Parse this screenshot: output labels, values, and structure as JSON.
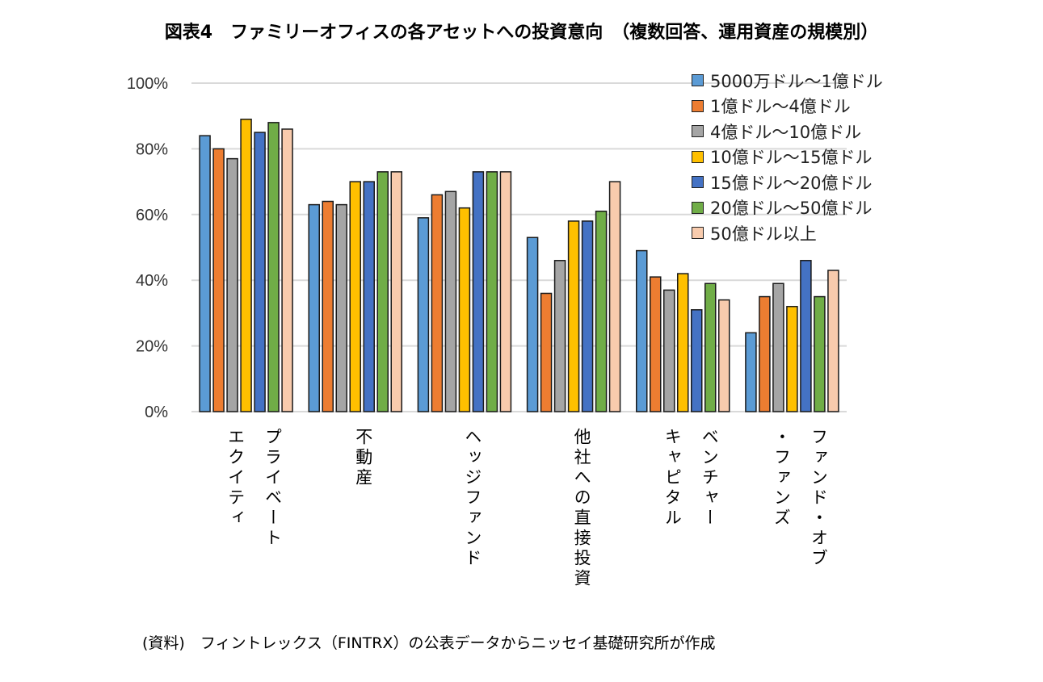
{
  "title": "図表4　ファミリーオフィスの各アセットへの投資意向　（複数回答、運用資産の規模別）",
  "source": "(資料)　フィントレックス（FINTRX）の公表データからニッセイ基礎研究所が作成",
  "chart_data": {
    "type": "bar",
    "title": "図表4　ファミリーオフィスの各アセットへの投資意向　（複数回答、運用資産の規模別）",
    "categories": [
      "プライベート\nエクイティ",
      "不動産",
      "ヘッジファンド",
      "他社への直接投資",
      "ベンチャー\nキャピタル",
      "ファンド・オブ\n・ファンズ"
    ],
    "ylim": [
      0,
      100
    ],
    "yticks": [
      "0%",
      "20%",
      "40%",
      "60%",
      "80%",
      "100%"
    ],
    "grid": true,
    "legend": "top-right",
    "series": [
      {
        "name": "5000万ドル～1億ドル",
        "color": "#5B9BD5",
        "values": [
          84,
          63,
          59,
          53,
          49,
          24
        ]
      },
      {
        "name": "1億ドル～4億ドル",
        "color": "#ED7D31",
        "values": [
          80,
          64,
          66,
          36,
          41,
          35
        ]
      },
      {
        "name": "4億ドル～10億ドル",
        "color": "#A5A5A5",
        "values": [
          77,
          63,
          67,
          46,
          37,
          39
        ]
      },
      {
        "name": "10億ドル～15億ドル",
        "color": "#FFC000",
        "values": [
          89,
          70,
          62,
          58,
          42,
          32
        ]
      },
      {
        "name": "15億ドル～20億ドル",
        "color": "#4472C4",
        "values": [
          85,
          70,
          73,
          58,
          31,
          46
        ]
      },
      {
        "name": "20億ドル～50億ドル",
        "color": "#70AD47",
        "values": [
          88,
          73,
          73,
          61,
          39,
          35
        ]
      },
      {
        "name": "50億ドル以上",
        "color": "#F8CBAD",
        "values": [
          86,
          73,
          73,
          70,
          34,
          43
        ]
      }
    ]
  }
}
